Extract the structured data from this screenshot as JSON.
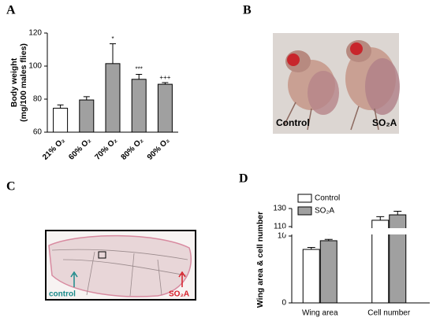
{
  "figure": {
    "panel_labels": [
      "A",
      "B",
      "C",
      "D"
    ],
    "photo_b_labels": [
      "Control",
      "SO₂A"
    ],
    "photo_c_labels": [
      "control",
      "SO₂A"
    ]
  },
  "chart_data": [
    {
      "type": "bar",
      "y_label": [
        "Body weight",
        "(mg/100 males flies)"
      ],
      "categories": [
        "21% O₂",
        "60% O₂",
        "70% O₂",
        "80% O₂",
        "90% O₂"
      ],
      "values": [
        74.5,
        79.5,
        101.5,
        92,
        89
      ],
      "errors": [
        2,
        2,
        12,
        3,
        1
      ],
      "colors": [
        "#ffffff",
        "#a0a0a0",
        "#a0a0a0",
        "#a0a0a0",
        "#a0a0a0"
      ],
      "annotations": [
        null,
        null,
        "*",
        "***",
        "+++"
      ],
      "ylim": [
        60,
        120
      ],
      "yticks": [
        60,
        80,
        100,
        120
      ]
    },
    {
      "type": "grouped_bar",
      "y_label": "Wing area & cell number",
      "categories": [
        "Wing area",
        "Cell number"
      ],
      "series": [
        {
          "name": "Control",
          "color": "#ffffff",
          "values": [
            8,
            117
          ],
          "errors": [
            0.3,
            4
          ],
          "annotations": [
            null,
            null
          ]
        },
        {
          "name": "SO₂A",
          "color": "#a0a0a0",
          "values": [
            9.3,
            123
          ],
          "errors": [
            0.2,
            4
          ],
          "annotations": [
            "*",
            null
          ]
        }
      ],
      "ylim": [
        0,
        130
      ],
      "axis_break": [
        10,
        110
      ],
      "yticks": [
        0,
        10,
        110,
        130
      ]
    }
  ]
}
